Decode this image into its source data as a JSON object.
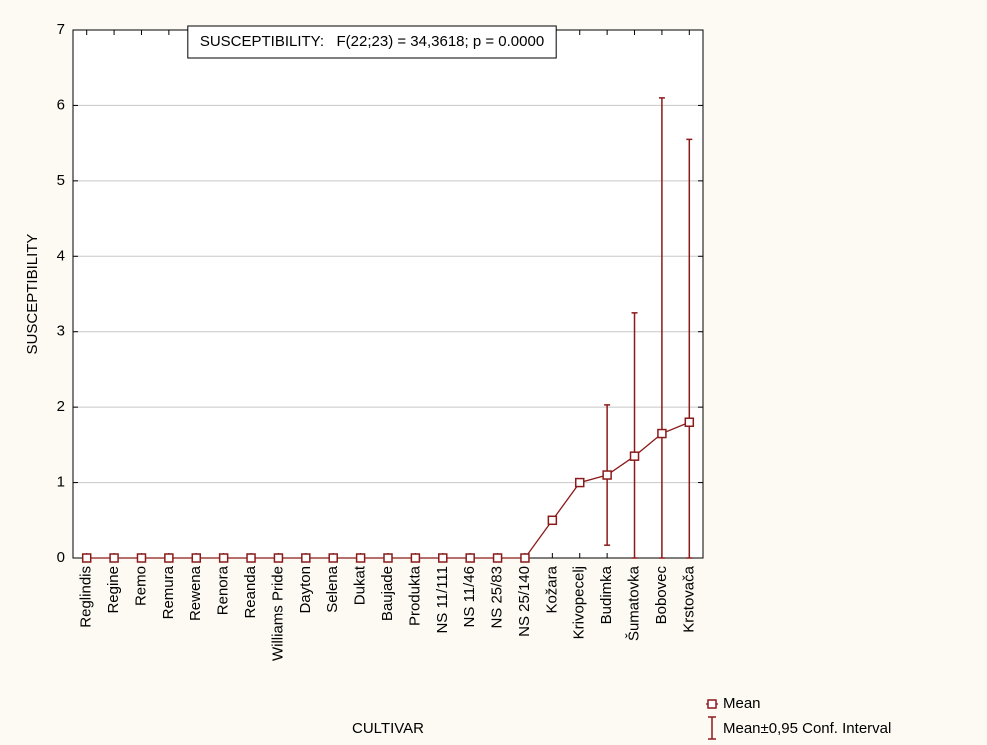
{
  "chart_data": {
    "type": "line",
    "annotation": "SUSCEPTIBILITY:   F(22;23) = 34,3618; p = 0.0000",
    "x_label": "CULTIVAR",
    "y_label": "SUSCEPTIBILITY",
    "categories": [
      "Reglindis",
      "Regine",
      "Remo",
      "Remura",
      "Rewena",
      "Renora",
      "Reanda",
      "Williams Pride",
      "Dayton",
      "Selena",
      "Dukat",
      "Baujade",
      "Produkta",
      "NS 11/111",
      "NS 11/46",
      "NS 25/83",
      "NS 25/140",
      "Kožara",
      "Krivopecelj",
      "Budimka",
      "Šumatovka",
      "Bobovec",
      "Krstovača"
    ],
    "series": [
      {
        "name": "Mean",
        "color": "#8b1a1a",
        "values": [
          0,
          0,
          0,
          0,
          0,
          0,
          0,
          0,
          0,
          0,
          0,
          0,
          0,
          0,
          0,
          0,
          0,
          0.5,
          1.0,
          1.1,
          1.35,
          1.65,
          1.8
        ],
        "errors": [
          null,
          null,
          null,
          null,
          null,
          null,
          null,
          null,
          null,
          null,
          null,
          null,
          null,
          null,
          null,
          null,
          null,
          null,
          null,
          0.93,
          1.9,
          4.45,
          3.75
        ]
      }
    ],
    "error_label": "Mean±0,95 Conf. Interval",
    "ylim": [
      0,
      7
    ],
    "yticks": [
      0,
      1,
      2,
      3,
      4,
      5,
      6,
      7
    ],
    "grid": true
  }
}
